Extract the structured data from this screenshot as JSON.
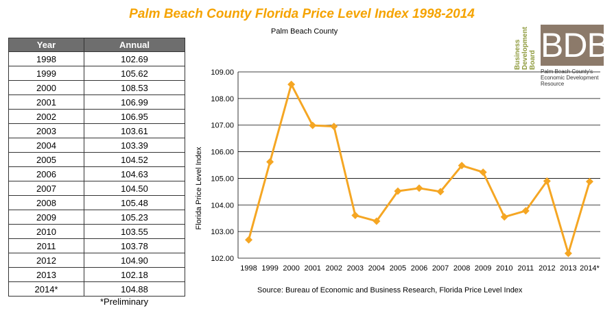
{
  "header": {
    "title": "Palm Beach County Florida Price Level Index 1998-2014",
    "subtitle": "Palm Beach County"
  },
  "table": {
    "headers": [
      "Year",
      "Annual"
    ],
    "rows": [
      [
        "1998",
        "102.69"
      ],
      [
        "1999",
        "105.62"
      ],
      [
        "2000",
        "108.53"
      ],
      [
        "2001",
        "106.99"
      ],
      [
        "2002",
        "106.95"
      ],
      [
        "2003",
        "103.61"
      ],
      [
        "2004",
        "103.39"
      ],
      [
        "2005",
        "104.52"
      ],
      [
        "2006",
        "104.63"
      ],
      [
        "2007",
        "104.50"
      ],
      [
        "2008",
        "105.48"
      ],
      [
        "2009",
        "105.23"
      ],
      [
        "2010",
        "103.55"
      ],
      [
        "2011",
        "103.78"
      ],
      [
        "2012",
        "104.90"
      ],
      [
        "2013",
        "102.18"
      ],
      [
        "2014*",
        "104.88"
      ]
    ],
    "note": "*Preliminary"
  },
  "source": "Source: Bureau of Economic and  Business Research, Florida Price Level Index",
  "logo": {
    "lines": [
      "Business",
      "Development",
      "Board"
    ],
    "mark": "BDB",
    "tagline_1": "Palm Beach County's",
    "tagline_2": "Economic Development Resource"
  },
  "chart_data": {
    "type": "line",
    "categories": [
      "1998",
      "1999",
      "2000",
      "2001",
      "2002",
      "2003",
      "2004",
      "2005",
      "2006",
      "2007",
      "2008",
      "2009",
      "2010",
      "2011",
      "2012",
      "2013",
      "2014*"
    ],
    "series": [
      {
        "values": [
          102.69,
          105.62,
          108.53,
          106.99,
          106.95,
          103.61,
          103.39,
          104.52,
          104.63,
          104.5,
          105.48,
          105.23,
          103.55,
          103.78,
          104.9,
          102.18,
          104.88
        ]
      }
    ],
    "ylabel": "Florida Price Level Index",
    "ylim": [
      102,
      109
    ],
    "yticks": [
      "102.00",
      "103.00",
      "104.00",
      "105.00",
      "106.00",
      "107.00",
      "108.00",
      "109.00"
    ],
    "grid": true,
    "color": "#f5a623"
  }
}
